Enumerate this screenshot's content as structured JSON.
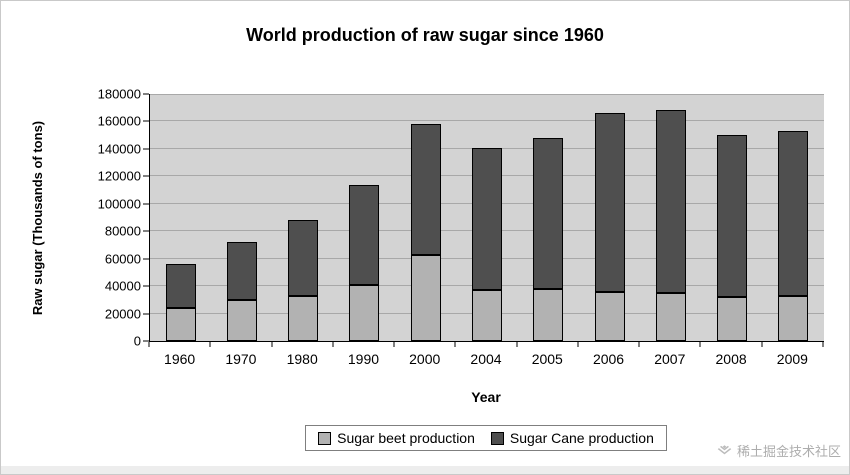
{
  "chart_data": {
    "type": "bar",
    "stacked": true,
    "title": "World production of raw sugar since 1960",
    "xlabel": "Year",
    "ylabel": "Raw sugar (Thousands of tons)",
    "ylim": [
      0,
      180000
    ],
    "ytick_step": 20000,
    "grid": true,
    "legend_position": "bottom",
    "plot_background": "#d3d3d3",
    "categories": [
      "1960",
      "1970",
      "1980",
      "1990",
      "2000",
      "2004",
      "2005",
      "2006",
      "2007",
      "2008",
      "2009"
    ],
    "series": [
      {
        "name": "Sugar beet production",
        "color": "#b2b2b2",
        "values": [
          24000,
          30000,
          33000,
          41000,
          63000,
          37000,
          38000,
          36000,
          35000,
          32000,
          33000
        ]
      },
      {
        "name": "Sugar Cane production",
        "color": "#4f4f4f",
        "values": [
          32000,
          42000,
          55000,
          73000,
          95000,
          104000,
          110000,
          130000,
          133000,
          118000,
          120000
        ]
      }
    ],
    "totals": [
      56000,
      72000,
      88000,
      114000,
      158000,
      141000,
      148000,
      166000,
      168000,
      150000,
      153000
    ]
  },
  "watermark": {
    "text": "稀土掘金技术社区",
    "icon": "juejin-logo-icon"
  }
}
